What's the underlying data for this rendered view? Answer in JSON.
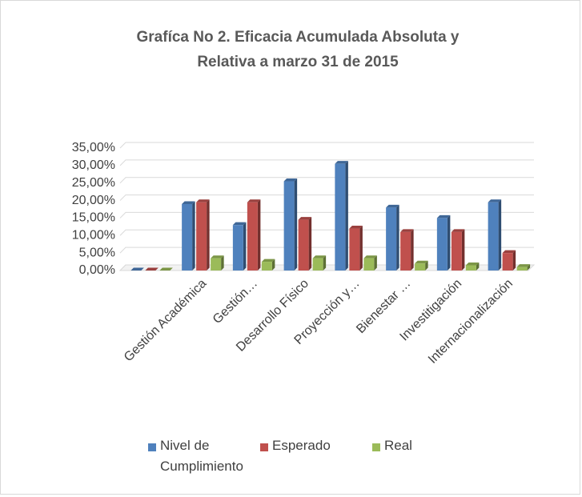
{
  "chart_data": {
    "type": "bar3d",
    "title": [
      "Grafíca No 2. Eficacia Acumulada Absoluta y",
      "Relativa a marzo 31 de 2015"
    ],
    "categories": [
      null,
      "Gestión Académica",
      "Gestión…",
      "Desarrollo Físico",
      "Proyección y…",
      "Bienestar …",
      "Investitigación",
      "Internacionalización"
    ],
    "series": [
      {
        "name": "Nivel de Cumplimiento",
        "color": "#4f81bd",
        "values": [
          0,
          19,
          13,
          25.5,
          30.5,
          18,
          15,
          19.5
        ]
      },
      {
        "name": "Esperado",
        "color": "#c0504d",
        "values": [
          0,
          19.5,
          19.5,
          14.5,
          12,
          11,
          11,
          5
        ]
      },
      {
        "name": "Real",
        "color": "#9bbb59",
        "values": [
          0,
          3.5,
          2.5,
          3.5,
          3.5,
          2,
          1.5,
          1
        ]
      }
    ],
    "ylim": [
      0,
      35
    ],
    "yticks": [
      {
        "value": 0,
        "label": "0,00%"
      },
      {
        "value": 5,
        "label": "5,00%"
      },
      {
        "value": 10,
        "label": "10,00%"
      },
      {
        "value": 15,
        "label": "15,00%"
      },
      {
        "value": 20,
        "label": "20,00%"
      },
      {
        "value": 25,
        "label": "25,00%"
      },
      {
        "value": 30,
        "label": "30,00%"
      },
      {
        "value": 35,
        "label": "35,00%"
      }
    ],
    "grid": true
  }
}
